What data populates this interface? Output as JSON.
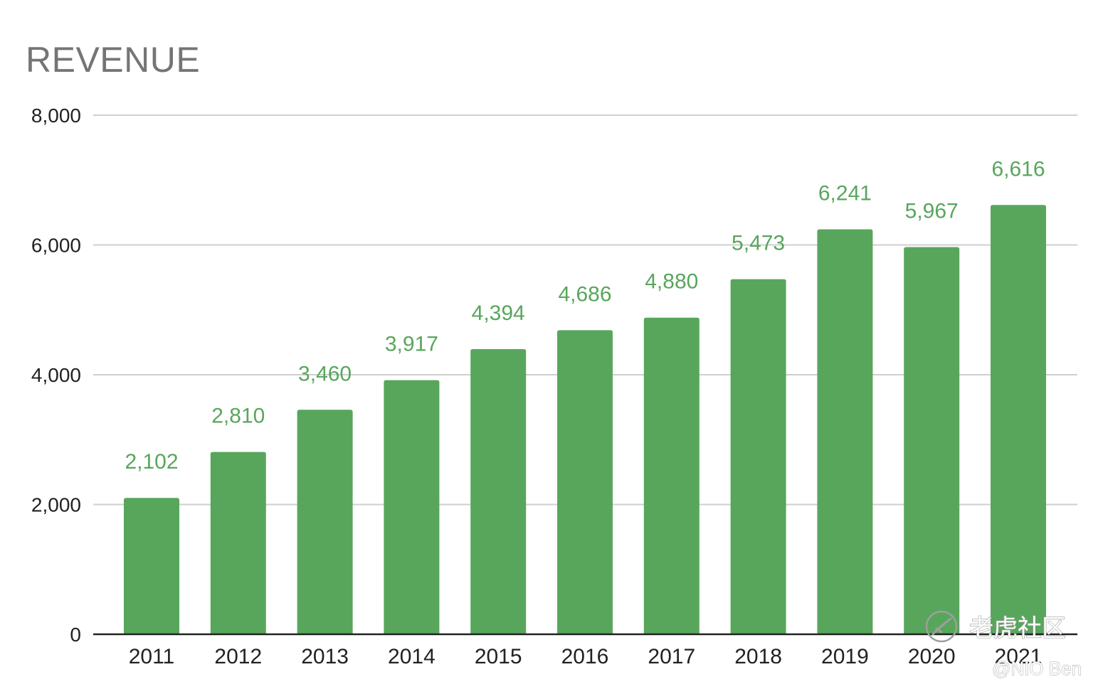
{
  "chart_data": {
    "type": "bar",
    "title": "REVENUE",
    "xlabel": "",
    "ylabel": "",
    "categories": [
      "2011",
      "2012",
      "2013",
      "2014",
      "2015",
      "2016",
      "2017",
      "2018",
      "2019",
      "2020",
      "2021"
    ],
    "values": [
      2102,
      2810,
      3460,
      3917,
      4394,
      4686,
      4880,
      5473,
      6241,
      5967,
      6616
    ],
    "data_labels": [
      "2,102",
      "2,810",
      "3,460",
      "3,917",
      "4,394",
      "4,686",
      "4,880",
      "5,473",
      "6,241",
      "5,967",
      "6,616"
    ],
    "yticks": [
      0,
      2000,
      4000,
      6000,
      8000
    ],
    "ytick_labels": [
      "0",
      "2,000",
      "4,000",
      "6,000",
      "8,000"
    ],
    "ylim": [
      0,
      8000
    ],
    "grid": true,
    "legend": "none",
    "bar_color": "#58a65c",
    "label_color": "#58a65c"
  },
  "watermark": {
    "site": "老虎社区",
    "user": "@NIO Ben",
    "logo_icon": "tiger-logo-icon"
  }
}
